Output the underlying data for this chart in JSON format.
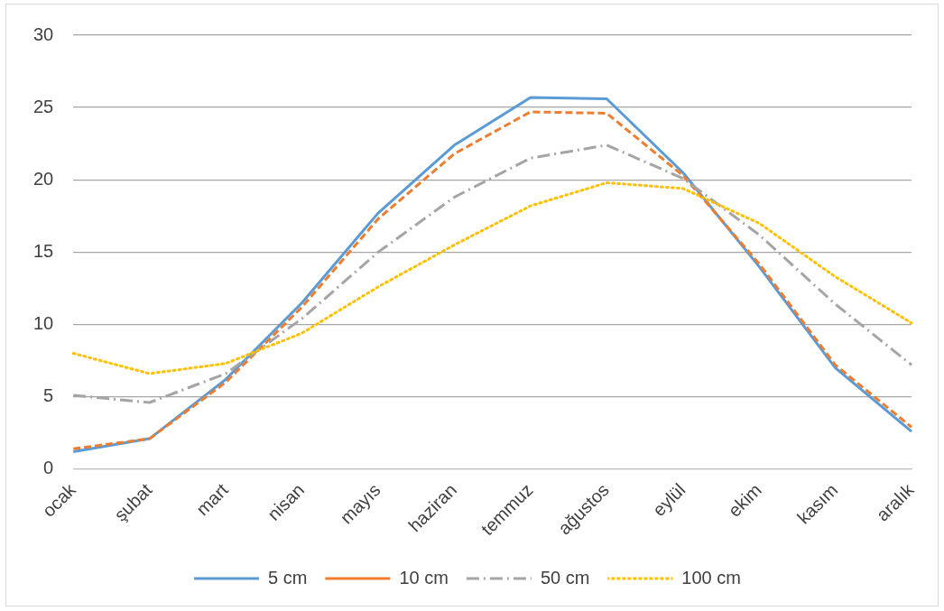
{
  "chart_data": {
    "type": "line",
    "categories": [
      "ocak",
      "şubat",
      "mart",
      "nisan",
      "mayıs",
      "haziran",
      "temmuz",
      "ağustos",
      "eylül",
      "ekim",
      "kasım",
      "aralık"
    ],
    "series": [
      {
        "name": "5 cm",
        "color": "#5b9bd5",
        "line_style": "solid",
        "values": [
          1.2,
          2.1,
          6.2,
          11.5,
          17.7,
          22.4,
          25.7,
          25.6,
          20.5,
          14.0,
          7.0,
          2.6
        ]
      },
      {
        "name": "10 cm",
        "color": "#ed7d31",
        "line_style": "dashed",
        "values": [
          1.4,
          2.1,
          6.0,
          11.2,
          17.3,
          21.8,
          24.7,
          24.6,
          20.3,
          14.2,
          7.2,
          2.9
        ]
      },
      {
        "name": "50 cm",
        "color": "#a5a5a5",
        "line_style": "dashdot",
        "values": [
          5.1,
          4.6,
          6.6,
          10.4,
          15.0,
          18.8,
          21.5,
          22.4,
          20.1,
          16.2,
          11.4,
          7.2
        ]
      },
      {
        "name": "100 cm",
        "color": "#ffc000",
        "line_style": "dotted",
        "values": [
          8.0,
          6.6,
          7.3,
          9.4,
          12.6,
          15.5,
          18.2,
          19.8,
          19.4,
          17.0,
          13.3,
          10.1
        ]
      }
    ],
    "ylim": [
      0,
      30
    ],
    "yticks": [
      0,
      5,
      10,
      15,
      20,
      25,
      30
    ],
    "grid": "y",
    "legend": "bottom",
    "marker": "none"
  }
}
